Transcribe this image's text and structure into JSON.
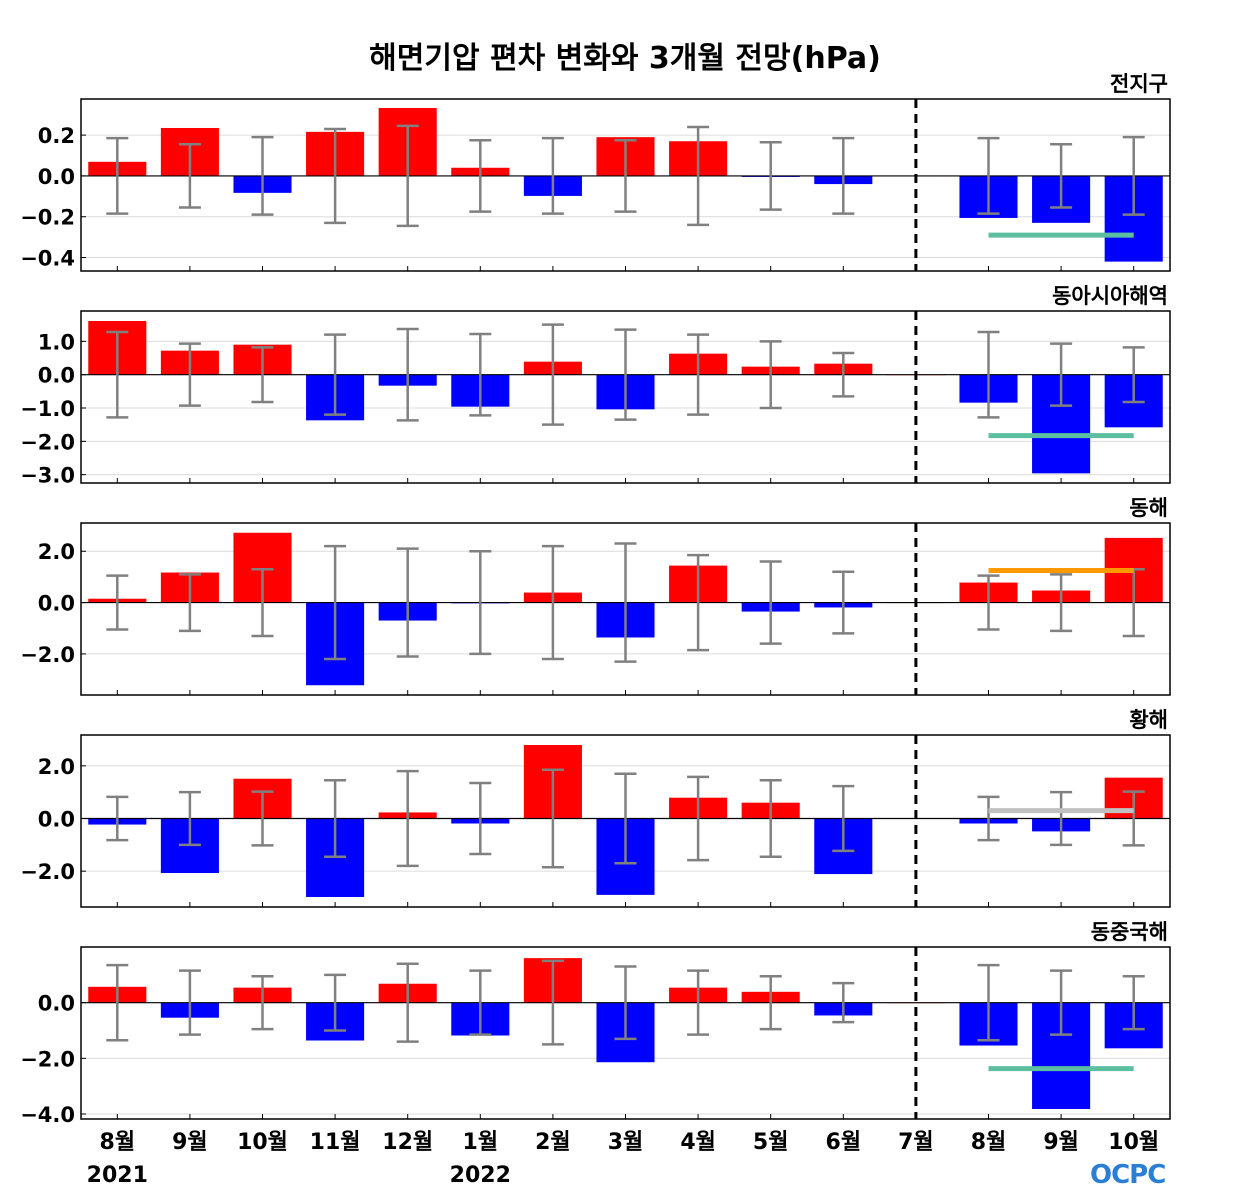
{
  "chart_data": {
    "type": "bar",
    "title": "해면기압 편차 변화와 3개월 전망(hPa)",
    "categories": [
      "8월",
      "9월",
      "10월",
      "11월",
      "12월",
      "1월",
      "2월",
      "3월",
      "4월",
      "5월",
      "6월",
      "7월",
      "8월",
      "9월",
      "10월"
    ],
    "year_labels": [
      {
        "index": 0,
        "label": "2021"
      },
      {
        "index": 5,
        "label": "2022"
      }
    ],
    "forecast_divider_index": 11,
    "colors": {
      "positive": "#ff0000",
      "negative": "#0000ff",
      "errorbar": "#808080"
    },
    "panels": [
      {
        "name": "전지구",
        "ylim": [
          -0.466,
          0.377
        ],
        "yticks": [
          0.2,
          0.0,
          -0.2,
          -0.4
        ],
        "ytick_labels": [
          "0.2",
          "0.0",
          "−0.2",
          "−0.4"
        ],
        "values": [
          0.069,
          0.235,
          -0.083,
          0.216,
          0.333,
          0.04,
          -0.098,
          0.19,
          0.17,
          -0.005,
          -0.04,
          0,
          -0.206,
          -0.23,
          -0.42
        ],
        "errors": [
          0.185,
          0.155,
          0.19,
          0.23,
          0.245,
          0.175,
          0.185,
          0.175,
          0.24,
          0.165,
          0.185,
          null,
          0.185,
          0.155,
          0.19
        ],
        "forecast_line": {
          "value": -0.29,
          "color": "#5cbfa0"
        }
      },
      {
        "name": "동아시아해역",
        "ylim": [
          -3.25,
          1.91
        ],
        "yticks": [
          1,
          0,
          -1,
          -2,
          -3
        ],
        "ytick_labels": [
          "1.0",
          "0.0",
          "−1.0",
          "−2.0",
          "−3.0"
        ],
        "values": [
          1.61,
          0.72,
          0.9,
          -1.37,
          -0.33,
          -0.96,
          0.39,
          -1.04,
          0.63,
          0.24,
          0.33,
          0,
          -0.84,
          -2.96,
          -1.58
        ],
        "errors": [
          1.28,
          0.93,
          0.82,
          1.2,
          1.37,
          1.22,
          1.5,
          1.35,
          1.2,
          1.0,
          0.65,
          null,
          1.28,
          0.93,
          0.82
        ],
        "forecast_line": {
          "value": -1.83,
          "color": "#5cbfa0"
        }
      },
      {
        "name": "동해",
        "ylim": [
          -3.6,
          3.1
        ],
        "yticks": [
          2,
          0,
          -2
        ],
        "ytick_labels": [
          "2.0",
          "0.0",
          "−2.0"
        ],
        "values": [
          0.15,
          1.17,
          2.72,
          -3.22,
          -0.7,
          -0.03,
          0.39,
          -1.36,
          1.44,
          -0.35,
          -0.19,
          0,
          0.78,
          0.47,
          2.52
        ],
        "errors": [
          1.05,
          1.1,
          1.3,
          2.2,
          2.1,
          2.0,
          2.2,
          2.3,
          1.85,
          1.6,
          1.2,
          null,
          1.05,
          1.1,
          1.3
        ],
        "forecast_line": {
          "value": 1.25,
          "color": "#ff9900"
        }
      },
      {
        "name": "황해",
        "ylim": [
          -3.36,
          3.17
        ],
        "yticks": [
          2,
          0,
          -2
        ],
        "ytick_labels": [
          "2.0",
          "0.0",
          "−2.0"
        ],
        "values": [
          -0.23,
          -2.07,
          1.51,
          -2.98,
          0.23,
          -0.19,
          2.79,
          -2.9,
          0.79,
          0.6,
          -2.11,
          0,
          -0.19,
          -0.49,
          1.55
        ],
        "errors": [
          0.82,
          1.0,
          1.02,
          1.45,
          1.8,
          1.35,
          1.85,
          1.7,
          1.58,
          1.45,
          1.23,
          null,
          0.82,
          1.0,
          1.02
        ],
        "forecast_line": {
          "value": 0.3,
          "color": "#c0c0c0"
        }
      },
      {
        "name": "동중국해",
        "ylim": [
          -4.18,
          2.0
        ],
        "yticks": [
          0,
          -2,
          -4
        ],
        "ytick_labels": [
          "0.0",
          "−2.0",
          "−4.0"
        ],
        "values": [
          0.57,
          -0.54,
          0.54,
          -1.36,
          0.68,
          -1.18,
          1.6,
          -2.14,
          0.54,
          0.39,
          -0.46,
          0,
          -1.54,
          -3.82,
          -1.64
        ],
        "errors": [
          1.35,
          1.15,
          0.95,
          1.0,
          1.4,
          1.15,
          1.5,
          1.3,
          1.15,
          0.95,
          0.7,
          null,
          1.35,
          1.15,
          0.95
        ],
        "forecast_line": {
          "value": -2.37,
          "color": "#5cbfa0"
        }
      }
    ]
  },
  "logo_text": "OCPC"
}
